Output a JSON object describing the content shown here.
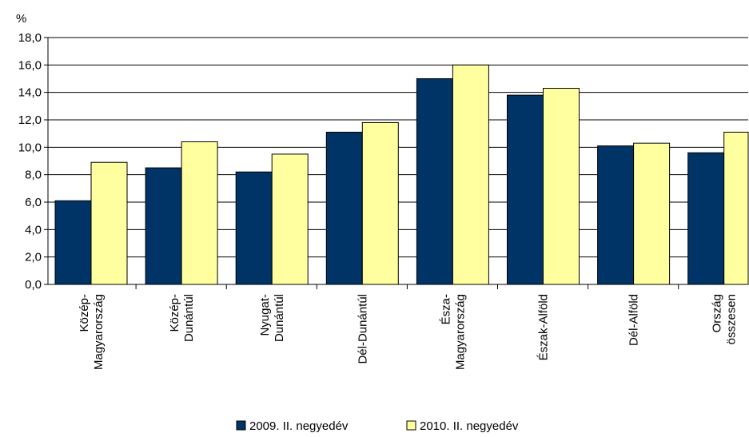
{
  "chart_data": {
    "type": "bar",
    "ylabel": "%",
    "ylim": [
      0,
      18
    ],
    "ytick_step": 2,
    "yticks": [
      "0,0",
      "2,0",
      "4,0",
      "6,0",
      "8,0",
      "10,0",
      "12,0",
      "14,0",
      "16,0",
      "18,0"
    ],
    "grid": true,
    "legend_position": "bottom",
    "categories": [
      [
        "Közép-",
        "Magyarország"
      ],
      [
        "Közép-",
        "Dunántúl"
      ],
      [
        "Nyugat-",
        "Dunántúl"
      ],
      [
        "Dél-Dunántúl"
      ],
      [
        "Észa-",
        "Magyarország"
      ],
      [
        "Észak-Alföld"
      ],
      [
        "Dél-Alföld"
      ],
      [
        "Ország",
        "összesen"
      ]
    ],
    "series": [
      {
        "name": "2009. II. negyedév",
        "color": "#003366",
        "values": [
          6.1,
          8.5,
          8.2,
          11.1,
          15.0,
          13.8,
          10.1,
          9.6
        ]
      },
      {
        "name": "2010. II. negyedév",
        "color": "#FFFFA0",
        "values": [
          8.9,
          10.4,
          9.5,
          11.8,
          16.0,
          14.3,
          10.3,
          11.1
        ]
      }
    ]
  }
}
